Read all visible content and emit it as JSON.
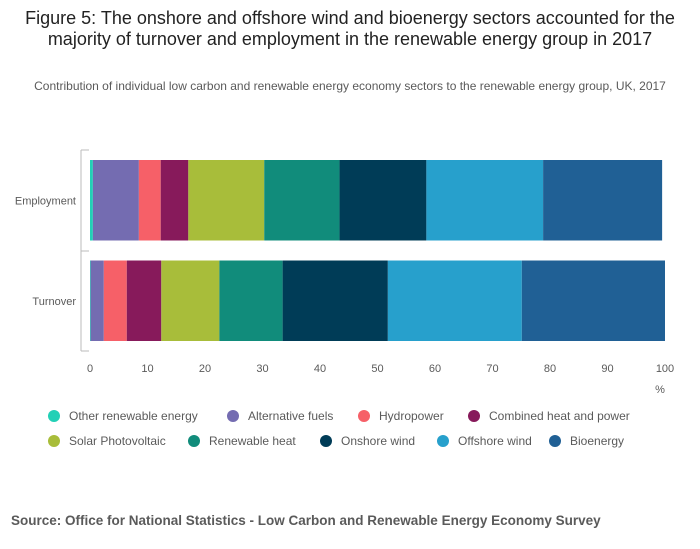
{
  "title": "Figure 5: The onshore and offshore wind and bioenergy sectors accounted for the majority of turnover and employment in the renewable energy group in 2017",
  "subtitle": "Contribution of individual low carbon and renewable energy economy sectors to the renewable energy group, UK, 2017",
  "source": "Source: Office for National Statistics - Low Carbon and Renewable Energy Economy Survey",
  "chart_data": {
    "type": "bar",
    "orientation": "horizontal",
    "stacked": true,
    "categories": [
      "Employment",
      "Turnover"
    ],
    "xlim": [
      0,
      100
    ],
    "xticks": [
      "0",
      "10",
      "20",
      "30",
      "40",
      "50",
      "60",
      "70",
      "80",
      "90",
      "100"
    ],
    "xlabel": "%",
    "ylabel": "",
    "legend_position": "bottom",
    "series": [
      {
        "name": "Other renewable energy",
        "color": "#22d0b6",
        "values": [
          0.5,
          0.1
        ]
      },
      {
        "name": "Alternative fuels",
        "color": "#746cb1",
        "values": [
          8.0,
          2.3
        ]
      },
      {
        "name": "Hydropower",
        "color": "#f66068",
        "values": [
          3.8,
          4.0
        ]
      },
      {
        "name": "Combined heat and power",
        "color": "#871a5b",
        "values": [
          4.8,
          6.0
        ]
      },
      {
        "name": "Solar Photovoltaic",
        "color": "#a8bd3a",
        "values": [
          13.2,
          10.1
        ]
      },
      {
        "name": "Renewable heat",
        "color": "#118c7b",
        "values": [
          13.1,
          11.0
        ]
      },
      {
        "name": "Onshore wind",
        "color": "#003c57",
        "values": [
          15.1,
          18.3
        ]
      },
      {
        "name": "Offshore wind",
        "color": "#27a0cc",
        "values": [
          20.3,
          23.3
        ]
      },
      {
        "name": "Bioenergy",
        "color": "#206095",
        "values": [
          20.7,
          24.9
        ]
      }
    ]
  }
}
